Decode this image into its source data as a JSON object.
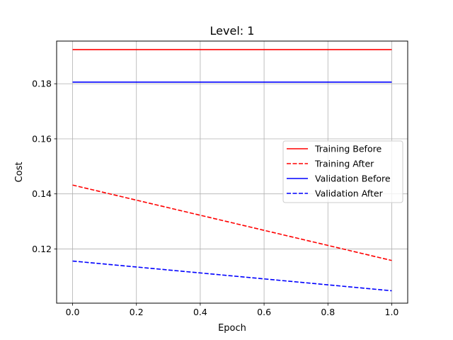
{
  "chart_data": {
    "type": "line",
    "title": "Level: 1",
    "xlabel": "Epoch",
    "ylabel": "Cost",
    "xlim": [
      -0.05,
      1.05
    ],
    "ylim": [
      0.1003,
      0.1955
    ],
    "xticks": [
      0.0,
      0.2,
      0.4,
      0.6,
      0.8,
      1.0
    ],
    "xtick_labels": [
      "0.0",
      "0.2",
      "0.4",
      "0.6",
      "0.8",
      "1.0"
    ],
    "yticks": [
      0.12,
      0.14,
      0.16,
      0.18
    ],
    "ytick_labels": [
      "0.12",
      "0.14",
      "0.16",
      "0.18"
    ],
    "grid": true,
    "legend_position": "center-right",
    "series": [
      {
        "name": "Training Before",
        "color": "#ff0000",
        "dash": "solid",
        "x": [
          0.0,
          1.0
        ],
        "y": [
          0.1924,
          0.1924
        ]
      },
      {
        "name": "Training After",
        "color": "#ff0000",
        "dash": "dashed",
        "x": [
          0.0,
          1.0
        ],
        "y": [
          0.1432,
          0.1158
        ]
      },
      {
        "name": "Validation Before",
        "color": "#0000ff",
        "dash": "solid",
        "x": [
          0.0,
          1.0
        ],
        "y": [
          0.1806,
          0.1806
        ]
      },
      {
        "name": "Validation After",
        "color": "#0000ff",
        "dash": "dashed",
        "x": [
          0.0,
          1.0
        ],
        "y": [
          0.1156,
          0.1048
        ]
      }
    ]
  }
}
